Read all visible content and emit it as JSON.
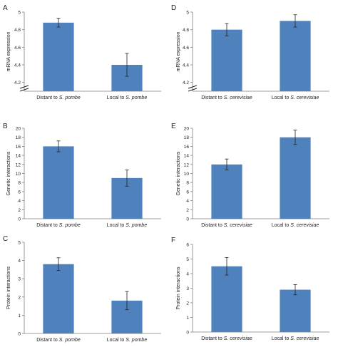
{
  "colors": {
    "bar": "#4f81bd",
    "axis": "#7f7f7f",
    "text": "#222222"
  },
  "chart_data": [
    {
      "panel_label": "A",
      "type": "bar",
      "categories": [
        [
          "Distant to ",
          "S. pombe"
        ],
        [
          "Local to ",
          "S. pombe"
        ]
      ],
      "values": [
        4.88,
        4.4
      ],
      "errors": [
        0.05,
        0.13
      ],
      "ylabel": "mRNA expression",
      "ylim": [
        4.1,
        5.0
      ],
      "yticks": [
        "5",
        "4.8",
        "4.6",
        "4.4",
        "4.2"
      ],
      "axis_break": true
    },
    {
      "panel_label": "D",
      "type": "bar",
      "categories": [
        [
          "Distant to ",
          "S. cerevisiae"
        ],
        [
          "Local to ",
          "S. cerevisiae"
        ]
      ],
      "values": [
        4.8,
        4.9
      ],
      "errors": [
        0.07,
        0.07
      ],
      "ylabel": "mRNA expression",
      "ylim": [
        4.1,
        5.0
      ],
      "yticks": [
        "5",
        "4.8",
        "4.6",
        "4.4",
        "4.2"
      ],
      "axis_break": true
    },
    {
      "panel_label": "B",
      "type": "bar",
      "categories": [
        [
          "Distant to ",
          "S. pombe"
        ],
        [
          "Local to ",
          "S. pombe"
        ]
      ],
      "values": [
        16,
        9
      ],
      "errors": [
        1.2,
        1.8
      ],
      "ylabel": "Genetic interactions",
      "ylim": [
        0,
        20
      ],
      "yticks": [
        "20",
        "18",
        "16",
        "14",
        "12",
        "10",
        "8",
        "6",
        "4",
        "2",
        "0"
      ]
    },
    {
      "panel_label": "E",
      "type": "bar",
      "categories": [
        [
          "Distant to ",
          "S. cerevisiae"
        ],
        [
          "Local to ",
          "S. cerevisiae"
        ]
      ],
      "values": [
        12,
        18
      ],
      "errors": [
        1.2,
        1.6
      ],
      "ylabel": "Genetic interactions",
      "ylim": [
        0,
        20
      ],
      "yticks": [
        "20",
        "18",
        "16",
        "14",
        "12",
        "10",
        "8",
        "6",
        "4",
        "2",
        "0"
      ]
    },
    {
      "panel_label": "C",
      "type": "bar",
      "categories": [
        [
          "Distant to ",
          "S. pombe"
        ],
        [
          "Local to ",
          "S. pombe"
        ]
      ],
      "values": [
        3.8,
        1.8
      ],
      "errors": [
        0.35,
        0.5
      ],
      "ylabel": "Protein interactions",
      "ylim": [
        0,
        5
      ],
      "yticks": [
        "5",
        "4",
        "3",
        "2",
        "1",
        "0"
      ]
    },
    {
      "panel_label": "F",
      "type": "bar",
      "categories": [
        [
          "Distant to ",
          "S. cerevisiae"
        ],
        [
          "Local to ",
          "S. cerevisiae"
        ]
      ],
      "values": [
        4.5,
        2.9
      ],
      "errors": [
        0.6,
        0.35
      ],
      "ylabel": "Protein interactions",
      "ylim": [
        0,
        6
      ],
      "yticks": [
        "6",
        "5",
        "4",
        "3",
        "2",
        "1",
        "0"
      ]
    }
  ]
}
